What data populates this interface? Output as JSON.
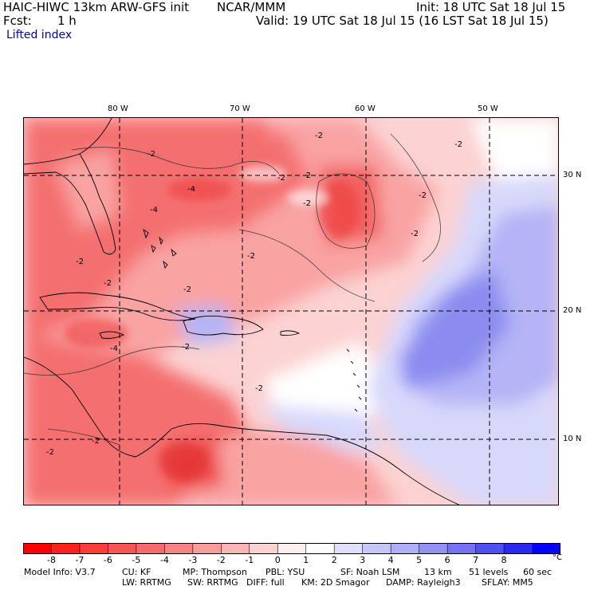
{
  "header": {
    "model": "HAIC-HIWC 13km ARW-GFS init",
    "org": "NCAR/MMM",
    "init": "Init: 18 UTC Sat 18 Jul 15",
    "fcst_label": "Fcst:",
    "fcst_value": "1 h",
    "valid": "Valid: 19 UTC Sat 18 Jul 15 (16 LST Sat 18 Jul 15)",
    "field": "Lifted index"
  },
  "map": {
    "lon_labels": [
      "80 W",
      "70 W",
      "60 W",
      "50 W"
    ],
    "lat_labels": [
      "30 N",
      "20 N",
      "10 N"
    ],
    "contour_labels": [
      "-2",
      "-2",
      "-2",
      "-2",
      "-2",
      "-2",
      "-2",
      "-2",
      "-2",
      "-2",
      "-2",
      "-2",
      "-2",
      "-2",
      "-4",
      "-4",
      "-4",
      "-2",
      "-2"
    ],
    "colors": {
      "strong_neg": "#ee3b3b",
      "mid_neg": "#f47070",
      "weak_neg": "#f9a3a3",
      "faint_neg": "#fcd2d2",
      "neutral": "#ffffff",
      "faint_pos": "#d8d8fb",
      "weak_pos": "#b4b4f6",
      "mid_pos": "#8c8cf0",
      "land_line": "#000000",
      "grid_line": "#000000"
    }
  },
  "colorbar": {
    "labels": [
      "-8",
      "-7",
      "-6",
      "-5",
      "-4",
      "-3",
      "-2",
      "-1",
      "0",
      "1",
      "2",
      "3",
      "4",
      "5",
      "6",
      "7",
      "8"
    ],
    "unit": "°C",
    "colors": [
      "#ff0000",
      "#ff2020",
      "#ff3c3c",
      "#f75454",
      "#f56a6a",
      "#f78383",
      "#f99c9c",
      "#fbb5b5",
      "#fcd2d2",
      "#fff0f0",
      "#ffffff",
      "#e0e0fd",
      "#c6c6fb",
      "#aeaef8",
      "#9292f5",
      "#7474f2",
      "#5050ee",
      "#2a2aee",
      "#0000ff"
    ]
  },
  "model_info": {
    "line1": [
      "Model Info: V3.7",
      "CU: KF",
      "MP: Thompson",
      "PBL: YSU",
      "SF: Noah LSM",
      "13 km",
      "51 levels",
      "60 sec"
    ],
    "line2": [
      "LW: RRTMG",
      "SW: RRTMG",
      "DIFF: full",
      "KM: 2D Smagor",
      "DAMP: Rayleigh3",
      "SFLAY: MM5"
    ]
  }
}
